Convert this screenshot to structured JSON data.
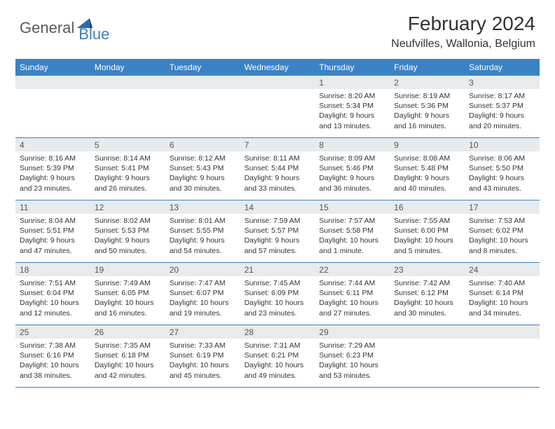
{
  "logo": {
    "text_general": "General",
    "text_blue": "Blue",
    "icon_color": "#2e6aa8"
  },
  "header": {
    "month_title": "February 2024",
    "location": "Neufvilles, Wallonia, Belgium"
  },
  "colors": {
    "header_bar": "#3b82c4",
    "day_number_bg": "#e8ebed",
    "text": "#333333",
    "logo_gray": "#5a5a5a",
    "logo_blue": "#3b7fc4",
    "row_border": "#3b82c4"
  },
  "weekdays": [
    "Sunday",
    "Monday",
    "Tuesday",
    "Wednesday",
    "Thursday",
    "Friday",
    "Saturday"
  ],
  "weeks": [
    [
      null,
      null,
      null,
      null,
      {
        "num": "1",
        "sunrise": "8:20 AM",
        "sunset": "5:34 PM",
        "daylight": "9 hours and 13 minutes."
      },
      {
        "num": "2",
        "sunrise": "8:19 AM",
        "sunset": "5:36 PM",
        "daylight": "9 hours and 16 minutes."
      },
      {
        "num": "3",
        "sunrise": "8:17 AM",
        "sunset": "5:37 PM",
        "daylight": "9 hours and 20 minutes."
      }
    ],
    [
      {
        "num": "4",
        "sunrise": "8:16 AM",
        "sunset": "5:39 PM",
        "daylight": "9 hours and 23 minutes."
      },
      {
        "num": "5",
        "sunrise": "8:14 AM",
        "sunset": "5:41 PM",
        "daylight": "9 hours and 26 minutes."
      },
      {
        "num": "6",
        "sunrise": "8:12 AM",
        "sunset": "5:43 PM",
        "daylight": "9 hours and 30 minutes."
      },
      {
        "num": "7",
        "sunrise": "8:11 AM",
        "sunset": "5:44 PM",
        "daylight": "9 hours and 33 minutes."
      },
      {
        "num": "8",
        "sunrise": "8:09 AM",
        "sunset": "5:46 PM",
        "daylight": "9 hours and 36 minutes."
      },
      {
        "num": "9",
        "sunrise": "8:08 AM",
        "sunset": "5:48 PM",
        "daylight": "9 hours and 40 minutes."
      },
      {
        "num": "10",
        "sunrise": "8:06 AM",
        "sunset": "5:50 PM",
        "daylight": "9 hours and 43 minutes."
      }
    ],
    [
      {
        "num": "11",
        "sunrise": "8:04 AM",
        "sunset": "5:51 PM",
        "daylight": "9 hours and 47 minutes."
      },
      {
        "num": "12",
        "sunrise": "8:02 AM",
        "sunset": "5:53 PM",
        "daylight": "9 hours and 50 minutes."
      },
      {
        "num": "13",
        "sunrise": "8:01 AM",
        "sunset": "5:55 PM",
        "daylight": "9 hours and 54 minutes."
      },
      {
        "num": "14",
        "sunrise": "7:59 AM",
        "sunset": "5:57 PM",
        "daylight": "9 hours and 57 minutes."
      },
      {
        "num": "15",
        "sunrise": "7:57 AM",
        "sunset": "5:58 PM",
        "daylight": "10 hours and 1 minute."
      },
      {
        "num": "16",
        "sunrise": "7:55 AM",
        "sunset": "6:00 PM",
        "daylight": "10 hours and 5 minutes."
      },
      {
        "num": "17",
        "sunrise": "7:53 AM",
        "sunset": "6:02 PM",
        "daylight": "10 hours and 8 minutes."
      }
    ],
    [
      {
        "num": "18",
        "sunrise": "7:51 AM",
        "sunset": "6:04 PM",
        "daylight": "10 hours and 12 minutes."
      },
      {
        "num": "19",
        "sunrise": "7:49 AM",
        "sunset": "6:05 PM",
        "daylight": "10 hours and 16 minutes."
      },
      {
        "num": "20",
        "sunrise": "7:47 AM",
        "sunset": "6:07 PM",
        "daylight": "10 hours and 19 minutes."
      },
      {
        "num": "21",
        "sunrise": "7:45 AM",
        "sunset": "6:09 PM",
        "daylight": "10 hours and 23 minutes."
      },
      {
        "num": "22",
        "sunrise": "7:44 AM",
        "sunset": "6:11 PM",
        "daylight": "10 hours and 27 minutes."
      },
      {
        "num": "23",
        "sunrise": "7:42 AM",
        "sunset": "6:12 PM",
        "daylight": "10 hours and 30 minutes."
      },
      {
        "num": "24",
        "sunrise": "7:40 AM",
        "sunset": "6:14 PM",
        "daylight": "10 hours and 34 minutes."
      }
    ],
    [
      {
        "num": "25",
        "sunrise": "7:38 AM",
        "sunset": "6:16 PM",
        "daylight": "10 hours and 38 minutes."
      },
      {
        "num": "26",
        "sunrise": "7:35 AM",
        "sunset": "6:18 PM",
        "daylight": "10 hours and 42 minutes."
      },
      {
        "num": "27",
        "sunrise": "7:33 AM",
        "sunset": "6:19 PM",
        "daylight": "10 hours and 45 minutes."
      },
      {
        "num": "28",
        "sunrise": "7:31 AM",
        "sunset": "6:21 PM",
        "daylight": "10 hours and 49 minutes."
      },
      {
        "num": "29",
        "sunrise": "7:29 AM",
        "sunset": "6:23 PM",
        "daylight": "10 hours and 53 minutes."
      },
      null,
      null
    ]
  ],
  "labels": {
    "sunrise_prefix": "Sunrise: ",
    "sunset_prefix": "Sunset: ",
    "daylight_prefix": "Daylight: "
  }
}
